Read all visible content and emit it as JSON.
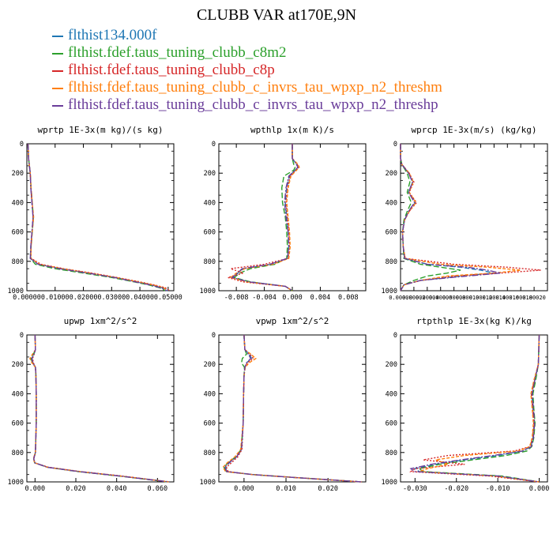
{
  "title": "CLUBB VAR at170E,9N",
  "legend": [
    {
      "name": "flthist134.000f",
      "color": "#1f77b4",
      "dash": "6,3"
    },
    {
      "name": "flthist.fdef.taus_tuning_clubb_c8m2",
      "color": "#2ca02c",
      "dash": "7,3"
    },
    {
      "name": "flthist.fdef.taus_tuning_clubb_c8p",
      "color": "#d62728",
      "dash": "2,2"
    },
    {
      "name": "flthist.fdef.taus_tuning_clubb_c_invrs_tau_wpxp_n2_threshm",
      "color": "#ff7f0e",
      "dash": "4,2"
    },
    {
      "name": "flthist.fdef.taus_tuning_clubb_c_invrs_tau_wpxp_n2_threshp",
      "color": "#6a3d9a",
      "dash": "8,2,2,2"
    }
  ],
  "chart_data": [
    {
      "type": "line",
      "title": "wprtp  1E-3x(m kg)/(s kg)",
      "xlim": [
        0,
        0.052
      ],
      "ylim": [
        0,
        1000
      ],
      "y_reversed": true,
      "xticks": [
        0,
        0.01,
        0.02,
        0.03,
        0.04,
        0.05
      ],
      "xticklabels": [
        "0.00000",
        "0.01000",
        "0.02000",
        "0.03000",
        "0.04000",
        "0.05000"
      ],
      "yticks": [
        0,
        200,
        400,
        600,
        800,
        1000
      ],
      "yticklabels": [
        "0",
        "200",
        "400",
        "600",
        "800",
        "1000"
      ],
      "y": [
        0,
        100,
        200,
        300,
        400,
        500,
        600,
        700,
        780,
        820,
        850,
        880,
        910,
        940,
        960,
        980,
        1000
      ],
      "series": [
        {
          "x": [
            0.0004,
            0.0006,
            0.0012,
            0.0014,
            0.0018,
            0.0022,
            0.0018,
            0.0014,
            0.0012,
            0.004,
            0.012,
            0.022,
            0.031,
            0.039,
            0.044,
            0.048,
            0.05
          ]
        },
        {
          "x": [
            0.0004,
            0.0006,
            0.0012,
            0.0015,
            0.0019,
            0.0023,
            0.0019,
            0.0015,
            0.0013,
            0.003,
            0.01,
            0.02,
            0.03,
            0.038,
            0.043,
            0.047,
            0.049
          ]
        },
        {
          "x": [
            0.0004,
            0.0006,
            0.0012,
            0.0014,
            0.0018,
            0.0022,
            0.0018,
            0.0014,
            0.0015,
            0.005,
            0.013,
            0.023,
            0.032,
            0.04,
            0.045,
            0.049,
            0.0505
          ]
        },
        {
          "x": [
            0.0004,
            0.0006,
            0.0012,
            0.0015,
            0.0019,
            0.0024,
            0.0019,
            0.0015,
            0.0014,
            0.0045,
            0.0125,
            0.0225,
            0.0315,
            0.0395,
            0.0445,
            0.0485,
            0.0495
          ]
        },
        {
          "x": [
            0.0004,
            0.0006,
            0.0012,
            0.0014,
            0.0018,
            0.0022,
            0.0018,
            0.0014,
            0.0012,
            0.004,
            0.0115,
            0.0215,
            0.031,
            0.0385,
            0.0435,
            0.0475,
            0.0495
          ]
        }
      ]
    },
    {
      "type": "line",
      "title": "wpthlp  1x(m K)/s",
      "xlim": [
        -0.0105,
        0.0105
      ],
      "ylim": [
        0,
        1000
      ],
      "y_reversed": true,
      "xticks": [
        -0.008,
        -0.004,
        0,
        0.004,
        0.008
      ],
      "xticklabels": [
        "-0.008",
        "-0.004",
        "0.000",
        "0.004",
        "0.008"
      ],
      "yticks": [
        0,
        200,
        400,
        600,
        800,
        1000
      ],
      "yticklabels": [
        "0",
        "200",
        "400",
        "600",
        "800",
        "1000"
      ],
      "y": [
        0,
        100,
        140,
        160,
        180,
        220,
        300,
        400,
        500,
        600,
        700,
        780,
        820,
        850,
        880,
        910,
        940,
        970,
        1000
      ],
      "series": [
        {
          "x": [
            0,
            0,
            0.0006,
            0.0008,
            0.0004,
            -0.0004,
            -0.0008,
            -0.001,
            -0.0008,
            -0.0006,
            -0.0005,
            -0.0007,
            -0.003,
            -0.007,
            -0.0078,
            -0.0085,
            -0.006,
            -0.001,
            0
          ]
        },
        {
          "x": [
            0,
            0,
            0.0002,
            0.0004,
            0.0002,
            -0.0012,
            -0.0015,
            -0.0014,
            -0.001,
            -0.0008,
            -0.0007,
            -0.0008,
            -0.0025,
            -0.006,
            -0.0075,
            -0.0083,
            -0.006,
            -0.001,
            0
          ]
        },
        {
          "x": [
            0,
            0,
            0.0007,
            0.0009,
            0.0005,
            -0.0003,
            -0.0007,
            -0.0009,
            -0.0007,
            -0.0005,
            -0.0004,
            -0.0006,
            -0.004,
            -0.0088,
            -0.007,
            -0.0092,
            -0.007,
            -0.001,
            0
          ]
        },
        {
          "x": [
            0,
            0,
            0.0008,
            0.001,
            0.0006,
            -0.0002,
            -0.0006,
            -0.0008,
            -0.0006,
            -0.0004,
            -0.0003,
            -0.0005,
            -0.0028,
            -0.0068,
            -0.008,
            -0.0088,
            -0.0065,
            -0.001,
            0
          ]
        },
        {
          "x": [
            0,
            0,
            0.0006,
            0.0008,
            0.0004,
            -0.0005,
            -0.0009,
            -0.0011,
            -0.0009,
            -0.0006,
            -0.0005,
            -0.0007,
            -0.0032,
            -0.0072,
            -0.0078,
            -0.0086,
            -0.0062,
            -0.001,
            0
          ]
        }
      ]
    },
    {
      "type": "line",
      "title": "wprcp  1E-3x(m/s) (kg/kg)",
      "xlim": [
        0,
        0.00022
      ],
      "ylim": [
        0,
        1000
      ],
      "y_reversed": true,
      "xticks": [
        0,
        2e-05,
        4e-05,
        6e-05,
        8e-05,
        0.0001,
        0.00012,
        0.00014,
        0.00016,
        0.00018,
        0.0002
      ],
      "xticklabels": [
        "0.00000",
        "0.00002",
        "0.00004",
        "0.00006",
        "0.00008",
        "0.00010",
        "0.00012",
        "0.00014",
        "0.00016",
        "0.00018",
        "0.00020"
      ],
      "yticks": [
        0,
        200,
        400,
        600,
        800,
        1000
      ],
      "yticklabels": [
        "0",
        "200",
        "400",
        "600",
        "800",
        "1000"
      ],
      "y": [
        0,
        100,
        140,
        200,
        260,
        330,
        400,
        460,
        520,
        600,
        700,
        780,
        820,
        840,
        860,
        880,
        900,
        930,
        960,
        1000
      ],
      "series": [
        {
          "x": [
            0,
            0,
            2e-06,
            1.2e-05,
            1.8e-05,
            1.2e-05,
            2.2e-05,
            1.2e-05,
            6e-06,
            3e-06,
            4e-06,
            6e-06,
            4e-05,
            9e-05,
            0.00012,
            0.00014,
            9e-05,
            3e-05,
            5e-06,
            0
          ]
        },
        {
          "x": [
            0,
            0,
            2e-06,
            1e-05,
            1.4e-05,
            1e-05,
            1.6e-05,
            1e-05,
            5e-06,
            3e-06,
            4e-06,
            5e-06,
            3e-05,
            6e-05,
            9e-05,
            7e-05,
            4e-05,
            2e-05,
            5e-06,
            0
          ]
        },
        {
          "x": [
            0,
            0,
            2e-06,
            1.3e-05,
            2e-05,
            1.3e-05,
            2.4e-05,
            1.3e-05,
            6e-06,
            3e-06,
            4e-06,
            7e-06,
            8e-05,
            0.00016,
            0.00021,
            0.00015,
            8e-05,
            3e-05,
            5e-06,
            0
          ]
        },
        {
          "x": [
            0,
            0,
            2e-06,
            1.3e-05,
            1.9e-05,
            1.3e-05,
            2.3e-05,
            1.3e-05,
            6e-06,
            3e-06,
            4e-06,
            7e-06,
            6e-05,
            0.00013,
            0.00018,
            0.00014,
            7e-05,
            3e-05,
            5e-06,
            0
          ]
        },
        {
          "x": [
            0,
            0,
            2e-06,
            1.2e-05,
            1.8e-05,
            1.2e-05,
            2.1e-05,
            1.2e-05,
            6e-06,
            3e-06,
            4e-06,
            6e-06,
            4e-05,
            0.0001,
            0.00013,
            0.00015,
            0.0001,
            3e-05,
            5e-06,
            0
          ]
        }
      ]
    },
    {
      "type": "line",
      "title": "upwp  1xm^2/s^2",
      "xlim": [
        -0.004,
        0.068
      ],
      "ylim": [
        0,
        1000
      ],
      "y_reversed": true,
      "xticks": [
        0,
        0.02,
        0.04,
        0.06
      ],
      "xticklabels": [
        "0.000",
        "0.020",
        "0.040",
        "0.060"
      ],
      "yticks": [
        0,
        200,
        400,
        600,
        800,
        1000
      ],
      "yticklabels": [
        "0",
        "200",
        "400",
        "600",
        "800",
        "1000"
      ],
      "y": [
        0,
        100,
        130,
        160,
        190,
        220,
        260,
        400,
        600,
        800,
        840,
        870,
        900,
        930,
        960,
        1000
      ],
      "series": [
        {
          "x": [
            0,
            0.0002,
            -0.0005,
            -0.0015,
            -0.001,
            0.0002,
            0.0004,
            0.0006,
            0.0006,
            0.0002,
            -0.0006,
            -0.0002,
            0.006,
            0.022,
            0.042,
            0.066
          ]
        },
        {
          "x": [
            0,
            0.0002,
            -0.0008,
            -0.002,
            -0.0012,
            0.0002,
            0.0004,
            0.0006,
            0.0006,
            0.0002,
            -0.0007,
            -0.0002,
            0.006,
            0.021,
            0.041,
            0.065
          ]
        },
        {
          "x": [
            0,
            0.0002,
            -0.0004,
            -0.0012,
            -0.0008,
            0.0002,
            0.0004,
            0.0006,
            0.0006,
            0.0002,
            -0.0005,
            -0.0002,
            0.0065,
            0.0225,
            0.0425,
            0.066
          ]
        },
        {
          "x": [
            0,
            0.0002,
            -0.0012,
            -0.0025,
            -0.0015,
            0.0002,
            0.0004,
            0.0006,
            0.0006,
            0.0002,
            -0.0008,
            -0.0002,
            0.006,
            0.022,
            0.042,
            0.0655
          ]
        },
        {
          "x": [
            0,
            0.0002,
            -0.0006,
            -0.0016,
            -0.001,
            0.0002,
            0.0004,
            0.0006,
            0.0006,
            0.0002,
            -0.0006,
            -0.0002,
            0.006,
            0.0215,
            0.0415,
            0.0655
          ]
        }
      ]
    },
    {
      "type": "line",
      "title": "vpwp  1xm^2/s^2",
      "xlim": [
        -0.006,
        0.029
      ],
      "ylim": [
        0,
        1000
      ],
      "y_reversed": true,
      "xticks": [
        0,
        0.01,
        0.02
      ],
      "xticklabels": [
        "0.000",
        "0.010",
        "0.020"
      ],
      "yticks": [
        0,
        200,
        400,
        600,
        800,
        1000
      ],
      "yticklabels": [
        "0",
        "200",
        "400",
        "600",
        "800",
        "1000"
      ],
      "y": [
        0,
        100,
        130,
        160,
        190,
        220,
        280,
        400,
        600,
        780,
        830,
        870,
        900,
        930,
        950,
        970,
        1000
      ],
      "series": [
        {
          "x": [
            0,
            0.0002,
            0.0012,
            0.0018,
            0.0006,
            0.0002,
            0,
            -0.0001,
            -0.0002,
            -0.0006,
            -0.0018,
            -0.0035,
            -0.0045,
            -0.004,
            0.002,
            0.012,
            0.028
          ]
        },
        {
          "x": [
            0,
            0.0002,
            0.0006,
            -0.0004,
            -0.0006,
            0.0001,
            0,
            -0.0001,
            -0.0002,
            -0.0007,
            -0.002,
            -0.0038,
            -0.0048,
            -0.0042,
            0.002,
            0.012,
            0.028
          ]
        },
        {
          "x": [
            0,
            0.0002,
            0.0014,
            0.0022,
            0.0008,
            0.0002,
            0,
            -0.0001,
            -0.0002,
            -0.0005,
            -0.0015,
            -0.003,
            -0.0042,
            -0.0038,
            0.002,
            0.012,
            0.028
          ]
        },
        {
          "x": [
            0,
            0.0002,
            0.0016,
            0.0028,
            0.0012,
            0.0003,
            0,
            -0.0001,
            -0.0002,
            -0.0008,
            -0.0022,
            -0.004,
            -0.005,
            -0.0044,
            0.002,
            0.012,
            0.028
          ]
        },
        {
          "x": [
            0,
            0.0002,
            0.001,
            0.0016,
            0.0006,
            0.0002,
            0,
            -0.0001,
            -0.0002,
            -0.0006,
            -0.0018,
            -0.0036,
            -0.0046,
            -0.0041,
            0.002,
            0.012,
            0.028
          ]
        }
      ]
    },
    {
      "type": "line",
      "title": "rtpthlp  1E-3x(kg K)/kg",
      "xlim": [
        -0.0335,
        0.002
      ],
      "ylim": [
        0,
        1000
      ],
      "y_reversed": true,
      "xticks": [
        -0.03,
        -0.02,
        -0.01,
        0
      ],
      "xticklabels": [
        "-0.030",
        "-0.020",
        "-0.010",
        "0.000"
      ],
      "yticks": [
        0,
        200,
        400,
        600,
        800,
        1000
      ],
      "yticklabels": [
        "0",
        "200",
        "400",
        "600",
        "800",
        "1000"
      ],
      "y": [
        0,
        200,
        300,
        400,
        500,
        600,
        700,
        760,
        790,
        820,
        850,
        880,
        910,
        930,
        960,
        1000
      ],
      "series": [
        {
          "x": [
            0,
            -0.0002,
            -0.001,
            -0.0018,
            -0.0015,
            -0.0012,
            -0.0015,
            -0.002,
            -0.004,
            -0.01,
            -0.018,
            -0.025,
            -0.03,
            -0.029,
            -0.01,
            0
          ]
        },
        {
          "x": [
            0,
            -0.0002,
            -0.0008,
            -0.0015,
            -0.0013,
            -0.001,
            -0.0013,
            -0.0018,
            -0.003,
            -0.008,
            -0.016,
            -0.024,
            -0.029,
            -0.028,
            -0.009,
            0
          ]
        },
        {
          "x": [
            0,
            -0.0002,
            -0.0011,
            -0.0019,
            -0.0016,
            -0.0013,
            -0.0016,
            -0.0022,
            -0.006,
            -0.022,
            -0.028,
            -0.018,
            -0.03,
            -0.031,
            -0.012,
            0
          ]
        },
        {
          "x": [
            0,
            -0.0002,
            -0.0012,
            -0.002,
            -0.0017,
            -0.0014,
            -0.0017,
            -0.0023,
            -0.005,
            -0.018,
            -0.025,
            -0.022,
            -0.027,
            -0.029,
            -0.011,
            0
          ]
        },
        {
          "x": [
            0,
            -0.0002,
            -0.001,
            -0.0017,
            -0.0014,
            -0.0011,
            -0.0014,
            -0.0019,
            -0.004,
            -0.011,
            -0.019,
            -0.026,
            -0.031,
            -0.03,
            -0.01,
            0
          ]
        }
      ]
    }
  ]
}
